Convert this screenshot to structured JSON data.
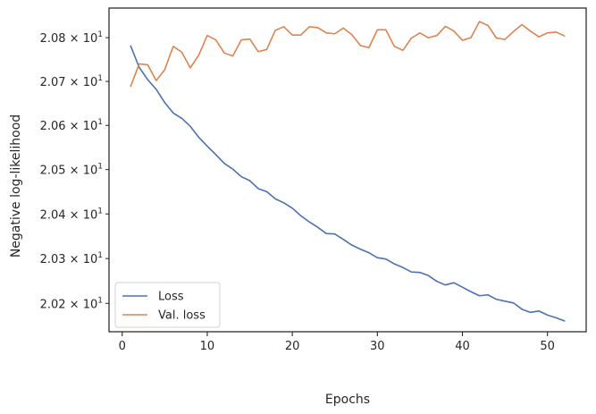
{
  "chart_data": {
    "type": "line",
    "xlabel": "Epochs",
    "ylabel": "Negative log-likelihood",
    "xlim": [
      -1.55,
      54.55
    ],
    "ylim": [
      20.137,
      20.868
    ],
    "y_scale": "log",
    "grid": false,
    "legend_position": "lower-left",
    "x_ticks": [
      {
        "value": 0,
        "label": "0"
      },
      {
        "value": 10,
        "label": "10"
      },
      {
        "value": 20,
        "label": "20"
      },
      {
        "value": 30,
        "label": "30"
      },
      {
        "value": 40,
        "label": "40"
      },
      {
        "value": 50,
        "label": "50"
      }
    ],
    "y_ticks": [
      {
        "value": 20.2,
        "label": "2.02 × 10",
        "exponent": "1"
      },
      {
        "value": 20.3,
        "label": "2.03 × 10",
        "exponent": "1"
      },
      {
        "value": 20.4,
        "label": "2.04 × 10",
        "exponent": "1"
      },
      {
        "value": 20.5,
        "label": "2.05 × 10",
        "exponent": "1"
      },
      {
        "value": 20.6,
        "label": "2.06 × 10",
        "exponent": "1"
      },
      {
        "value": 20.7,
        "label": "2.07 × 10",
        "exponent": "1"
      },
      {
        "value": 20.8,
        "label": "2.08 × 10",
        "exponent": "1"
      }
    ],
    "x": [
      1,
      2,
      3,
      4,
      5,
      6,
      7,
      8,
      9,
      10,
      11,
      12,
      13,
      14,
      15,
      16,
      17,
      18,
      19,
      20,
      21,
      22,
      23,
      24,
      25,
      26,
      27,
      28,
      29,
      30,
      31,
      32,
      33,
      34,
      35,
      36,
      37,
      38,
      39,
      40,
      41,
      42,
      43,
      44,
      45,
      46,
      47,
      48,
      49,
      50,
      51,
      52
    ],
    "series": [
      {
        "name": "Loss",
        "color": "#4c72b0",
        "values": [
          20.781,
          20.732,
          20.704,
          20.682,
          20.652,
          20.628,
          20.616,
          20.598,
          20.573,
          20.553,
          20.534,
          20.514,
          20.501,
          20.484,
          20.475,
          20.457,
          20.45,
          20.434,
          20.425,
          20.413,
          20.396,
          20.382,
          20.37,
          20.356,
          20.355,
          20.343,
          20.33,
          20.321,
          20.313,
          20.302,
          20.299,
          20.288,
          20.28,
          20.27,
          20.269,
          20.262,
          20.249,
          20.241,
          20.246,
          20.236,
          20.226,
          20.217,
          20.219,
          20.209,
          20.205,
          20.201,
          20.187,
          20.18,
          20.183,
          20.174,
          20.168,
          20.161
        ]
      },
      {
        "name": "Val. loss",
        "color": "#dd8452",
        "values": [
          20.689,
          20.74,
          20.738,
          20.702,
          20.727,
          20.78,
          20.767,
          20.731,
          20.76,
          20.805,
          20.795,
          20.765,
          20.758,
          20.795,
          20.797,
          20.768,
          20.773,
          20.817,
          20.825,
          20.806,
          20.806,
          20.825,
          20.823,
          20.811,
          20.809,
          20.822,
          20.807,
          20.782,
          20.777,
          20.818,
          20.818,
          20.78,
          20.771,
          20.799,
          20.811,
          20.8,
          20.805,
          20.826,
          20.815,
          20.794,
          20.8,
          20.837,
          20.828,
          20.799,
          20.796,
          20.814,
          20.83,
          20.815,
          20.802,
          20.811,
          20.813,
          20.804
        ]
      }
    ]
  }
}
